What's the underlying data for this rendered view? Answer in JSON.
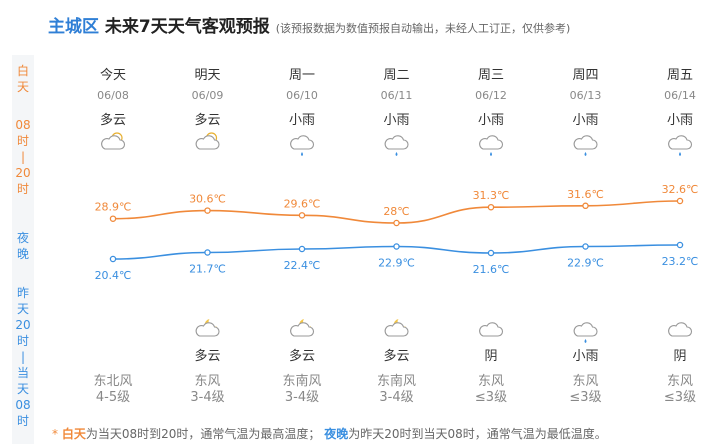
{
  "header": {
    "city": "主城区",
    "title": "未来7天天气客观预报",
    "note": "(该预报数据为数值预报自动输出，未经人工订正，仅供参考)"
  },
  "side": {
    "day_label": [
      "白",
      "天"
    ],
    "day_hours": [
      "08",
      "时",
      "|",
      "20",
      "时"
    ],
    "night_label": [
      "夜",
      "晚"
    ],
    "night_hours": [
      "昨",
      "天",
      "20",
      "时",
      "|",
      "当",
      "天",
      "08",
      "时"
    ]
  },
  "days": [
    {
      "name": "今天",
      "date": "06/08",
      "day_weather": "多云",
      "night_weather": null,
      "wind": "东北风",
      "level": "4-5级"
    },
    {
      "name": "明天",
      "date": "06/09",
      "day_weather": "多云",
      "night_weather": "多云",
      "wind": "东风",
      "level": "3-4级"
    },
    {
      "name": "周一",
      "date": "06/10",
      "day_weather": "小雨",
      "night_weather": "多云",
      "wind": "东南风",
      "level": "3-4级"
    },
    {
      "name": "周二",
      "date": "06/11",
      "day_weather": "小雨",
      "night_weather": "多云",
      "wind": "东南风",
      "level": "3-4级"
    },
    {
      "name": "周三",
      "date": "06/12",
      "day_weather": "小雨",
      "night_weather": "阴",
      "wind": "东风",
      "level": "≤3级"
    },
    {
      "name": "周四",
      "date": "06/13",
      "day_weather": "小雨",
      "night_weather": "小雨",
      "wind": "东风",
      "level": "≤3级"
    },
    {
      "name": "周五",
      "date": "06/14",
      "day_weather": "小雨",
      "night_weather": "阴",
      "wind": "东风",
      "level": "≤3级"
    }
  ],
  "chart_data": {
    "type": "line",
    "series": [
      {
        "name": "白天",
        "color": "#f0893a",
        "values": [
          28.9,
          30.6,
          29.6,
          28,
          31.3,
          31.6,
          32.6
        ],
        "value_labels": [
          "28.9℃",
          "30.6℃",
          "29.6℃",
          "28℃",
          "31.3℃",
          "31.6℃",
          "32.6℃"
        ]
      },
      {
        "name": "夜晚",
        "color": "#3a8fe0",
        "values": [
          20.4,
          21.7,
          22.4,
          22.9,
          21.6,
          22.9,
          23.2
        ],
        "value_labels": [
          "20.4℃",
          "21.7℃",
          "22.4℃",
          "22.9℃",
          "21.6℃",
          "22.9℃",
          "23.2℃"
        ]
      }
    ]
  },
  "footer": {
    "star": "*",
    "day": "白天",
    "day_text": "为当天08时到20时，通常气温为最高温度；",
    "night": "夜晚",
    "night_text": "为昨天20时到当天08时，通常气温为最低温度。"
  }
}
